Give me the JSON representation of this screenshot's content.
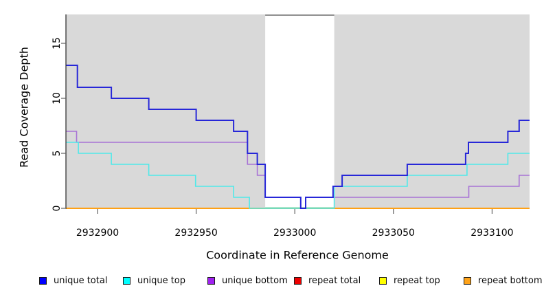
{
  "axes": {
    "y_label": "Read Coverage Depth",
    "x_label": "Coordinate in Reference Genome"
  },
  "chart_data": {
    "type": "line",
    "subtype": "step",
    "title": "",
    "xlabel": "Coordinate in Reference Genome",
    "ylabel": "Read Coverage Depth",
    "xlim": [
      2932884,
      2933119
    ],
    "ylim": [
      0,
      17.625
    ],
    "x_ticks": [
      2932900,
      2932950,
      2933000,
      2933050,
      2933100
    ],
    "y_ticks": [
      0,
      5,
      10,
      15
    ],
    "grid": false,
    "legend_position": "bottom",
    "plot_background": "#D9D9D9",
    "axis_line_color": "#333333",
    "tick_color": "#616161",
    "no_data_band": {
      "x_start": 2932985,
      "x_end": 2933020,
      "fill": "#FFFFFF",
      "top_border_color": "#8F8F8F",
      "zero_line_color": "#8FCE8F"
    },
    "series": [
      {
        "name": "repeat total",
        "line_color": "#DE1A1A",
        "swatch_color": "#EE0000",
        "width": 1.6,
        "steps": [
          [
            2932884,
            0
          ]
        ]
      },
      {
        "name": "repeat top",
        "line_color": "#F0F000",
        "swatch_color": "#FFFF00",
        "width": 1.6,
        "steps": [
          [
            2932884,
            0
          ]
        ]
      },
      {
        "name": "repeat bottom",
        "line_color": "#FFA115",
        "swatch_color": "#FFA319",
        "width": 2,
        "steps": [
          [
            2932884,
            0
          ]
        ]
      },
      {
        "name": "unique bottom",
        "line_color": "#A873D6",
        "swatch_color": "#A021F0",
        "width": 1.6,
        "steps": [
          [
            2932884,
            7
          ],
          [
            2932889.4,
            6
          ],
          [
            2932976,
            4
          ],
          [
            2932981,
            3
          ],
          [
            2932985,
            1
          ],
          [
            2933003,
            0
          ],
          [
            2933005.5,
            1
          ],
          [
            2933088.2,
            2
          ],
          [
            2933113.7,
            3
          ]
        ]
      },
      {
        "name": "unique top",
        "line_color": "#4FE9E9",
        "swatch_color": "#00FFFF",
        "width": 1.6,
        "steps": [
          [
            2932884,
            6
          ],
          [
            2932890.3,
            5
          ],
          [
            2932907,
            4
          ],
          [
            2932926,
            3
          ],
          [
            2932949.7,
            2
          ],
          [
            2932969,
            1
          ],
          [
            2932977,
            0
          ],
          [
            2933020,
            2
          ],
          [
            2933057,
            3
          ],
          [
            2933087.3,
            4
          ],
          [
            2933108,
            5
          ]
        ]
      },
      {
        "name": "unique total",
        "line_color": "#2727D8",
        "swatch_color": "#0000FF",
        "width": 2,
        "steps": [
          [
            2932884,
            13
          ],
          [
            2932889.8,
            11
          ],
          [
            2932907,
            10
          ],
          [
            2932926,
            9
          ],
          [
            2932950,
            8
          ],
          [
            2932969,
            7
          ],
          [
            2932976,
            5
          ],
          [
            2932981,
            4
          ],
          [
            2932985,
            1
          ],
          [
            2933003,
            0
          ],
          [
            2933005.5,
            1
          ],
          [
            2933019.4,
            2
          ],
          [
            2933024,
            3
          ],
          [
            2933057,
            4
          ],
          [
            2933086.6,
            5
          ],
          [
            2933088,
            6
          ],
          [
            2933108,
            7
          ],
          [
            2933113.7,
            8
          ]
        ]
      }
    ],
    "legend_order": [
      "unique total",
      "unique top",
      "unique bottom",
      "repeat total",
      "repeat top",
      "repeat bottom"
    ]
  }
}
